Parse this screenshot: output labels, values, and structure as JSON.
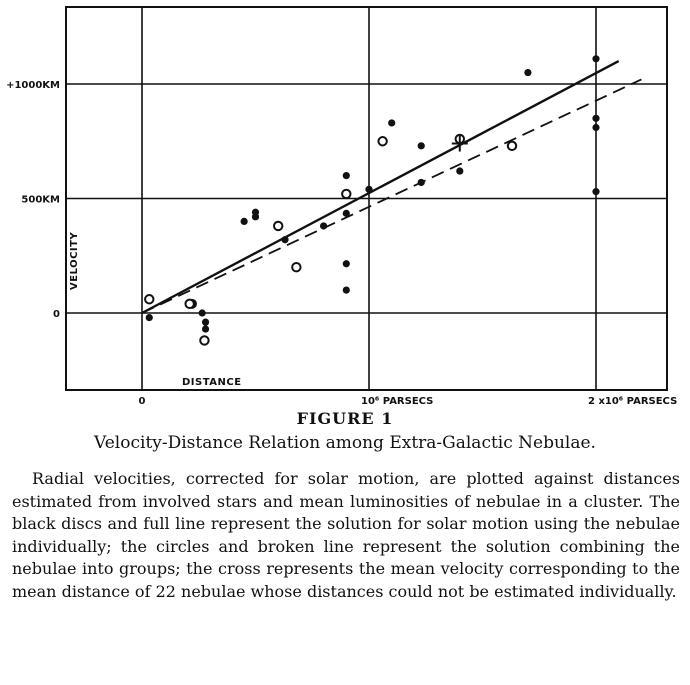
{
  "chart_data": {
    "type": "scatter",
    "title": "",
    "xlabel": "DISTANCE",
    "ylabel": "VELOCITY",
    "x_unit": "parsecs",
    "y_unit": "km/sec",
    "xlim": [
      -300000,
      2300000
    ],
    "ylim": [
      -330000,
      1330000
    ],
    "ylim_km": [
      -330,
      1330
    ],
    "grid": true,
    "legend": "none",
    "x_ticks": [
      {
        "value": 0,
        "label": "0"
      },
      {
        "value": 1000000,
        "label": "10⁶ PARSECS"
      },
      {
        "value": 2000000,
        "label": "2 x10⁶ PARSECS"
      }
    ],
    "y_ticks": [
      {
        "value": 0,
        "label": "0"
      },
      {
        "value": 500,
        "label": "500KM"
      },
      {
        "value": 1000,
        "label": "+1000KM"
      }
    ],
    "x_grid": [
      0,
      1000000,
      2000000
    ],
    "y_grid": [
      0,
      500,
      1000
    ],
    "series": [
      {
        "marker": "filled-disc",
        "points": [
          {
            "x": 32000,
            "y": -20
          },
          {
            "x": 220000,
            "y": 40
          },
          {
            "x": 265000,
            "y": 0
          },
          {
            "x": 280000,
            "y": -40
          },
          {
            "x": 280000,
            "y": -70
          },
          {
            "x": 450000,
            "y": 400
          },
          {
            "x": 500000,
            "y": 440
          },
          {
            "x": 500000,
            "y": 420
          },
          {
            "x": 630000,
            "y": 320
          },
          {
            "x": 800000,
            "y": 380
          },
          {
            "x": 900000,
            "y": 600
          },
          {
            "x": 900000,
            "y": 435
          },
          {
            "x": 900000,
            "y": 215
          },
          {
            "x": 900000,
            "y": 100
          },
          {
            "x": 1000000,
            "y": 540
          },
          {
            "x": 1100000,
            "y": 830
          },
          {
            "x": 1230000,
            "y": 730
          },
          {
            "x": 1230000,
            "y": 570
          },
          {
            "x": 1400000,
            "y": 620
          },
          {
            "x": 1700000,
            "y": 1050
          },
          {
            "x": 2000000,
            "y": 1110
          },
          {
            "x": 2000000,
            "y": 850
          },
          {
            "x": 2000000,
            "y": 810
          },
          {
            "x": 2000000,
            "y": 530
          }
        ]
      },
      {
        "marker": "open-circle",
        "points": [
          {
            "x": 32000,
            "y": 60
          },
          {
            "x": 210000,
            "y": 40
          },
          {
            "x": 275000,
            "y": -120
          },
          {
            "x": 600000,
            "y": 380
          },
          {
            "x": 680000,
            "y": 200
          },
          {
            "x": 900000,
            "y": 520
          },
          {
            "x": 1060000,
            "y": 750
          },
          {
            "x": 1400000,
            "y": 760
          },
          {
            "x": 1630000,
            "y": 730
          }
        ]
      },
      {
        "marker": "cross",
        "points": [
          {
            "x": 1400000,
            "y": 740
          }
        ]
      }
    ],
    "fit_lines": [
      {
        "style": "solid",
        "x": [
          0,
          2100000
        ],
        "y": [
          0,
          1100
        ]
      },
      {
        "style": "dashed",
        "x": [
          0,
          2200000
        ],
        "y": [
          0,
          1020
        ]
      }
    ]
  },
  "figure_label": "FIGURE 1",
  "figure_title": "Velocity-Distance Relation among Extra-Galactic Nebulae.",
  "caption": "Radial velocities, corrected for solar motion, are plotted against distances estimated from involved stars and mean luminosities of nebulae in a cluster. The black discs and full line represent the solution for solar motion using the nebulae individually; the circles and broken line represent the solution combining the nebulae into groups; the cross represents the mean velocity corresponding to the mean distance of 22 nebulae whose distances could not be estimated individually."
}
